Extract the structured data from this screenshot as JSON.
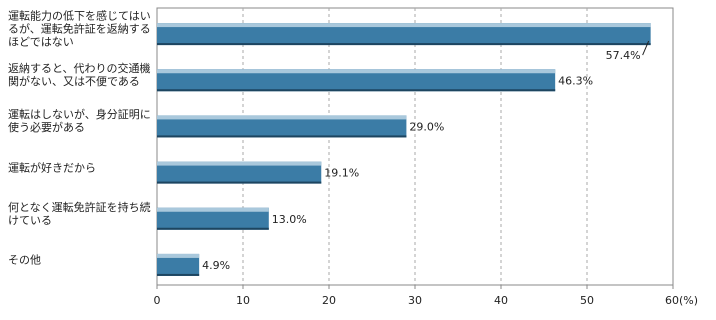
{
  "chart_data": {
    "type": "bar",
    "orientation": "horizontal",
    "categories": [
      "運転能力の低下を感じてはいるが、運転免許証を返納するほどではない",
      "返納すると、代わりの交通機関がない、又は不便である",
      "運転はしないが、身分証明に使う必要がある",
      "運転が好きだから",
      "何となく運転免許証を持ち続けている",
      "その他"
    ],
    "values": [
      57.4,
      46.3,
      29.0,
      19.1,
      13.0,
      4.9
    ],
    "value_labels": [
      "57.4%",
      "46.3%",
      "29.0%",
      "19.1%",
      "13.0%",
      "4.9%"
    ],
    "color": "#3b7ca6",
    "xlim": [
      0,
      60
    ],
    "xticks": [
      0,
      10,
      20,
      30,
      40,
      50,
      {
        "value": 60,
        "label": "60(%)"
      }
    ],
    "grid": true
  }
}
